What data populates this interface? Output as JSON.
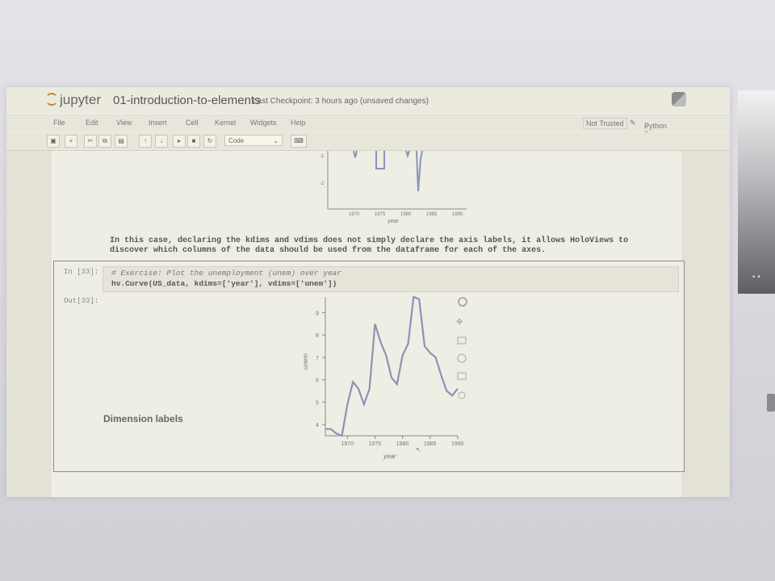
{
  "app": {
    "logo_text": "jupyter",
    "notebook_name": "01-introduction-to-elements",
    "checkpoint": "Last Checkpoint: 3 hours ago (unsaved changes)"
  },
  "menu": [
    "File",
    "Edit",
    "View",
    "Insert",
    "Cell",
    "Kernel",
    "Widgets",
    "Help"
  ],
  "status": {
    "trusted": "Not Trusted",
    "kernel": "Python 3"
  },
  "toolbar": {
    "cell_type": "Code"
  },
  "cells": {
    "markdown_line1": "In this case, declaring the  kdims  and  vdims  does not simply declare the axis labels, it allows HoloViews to",
    "markdown_line2": "discover which columns of the data should be used from the dataframe for each of the axes.",
    "in_prompt": "In [33]:",
    "code_line1": "# Exercise: Plot the unemployment (unem) over year",
    "code_line2": "hv.Curve(US_data, kdims=['year'], vdims=['unem'])",
    "out_prompt": "Out[33]:"
  },
  "section_heading": "Dimension labels",
  "chart_data": [
    {
      "type": "line",
      "xlabel": "year",
      "ylabel": "",
      "x_ticks": [
        1970,
        1975,
        1980,
        1985,
        1990
      ],
      "y_ticks": [
        -1,
        -2
      ],
      "note": "partially visible plot from previous output"
    },
    {
      "type": "line",
      "xlabel": "year",
      "ylabel": "unem",
      "xlim": [
        1966,
        1990
      ],
      "ylim": [
        3.5,
        9.7
      ],
      "x_ticks": [
        1970,
        1975,
        1980,
        1985,
        1990
      ],
      "y_ticks": [
        4,
        5,
        6,
        7,
        8,
        9
      ],
      "x": [
        1966,
        1967,
        1968,
        1969,
        1970,
        1971,
        1972,
        1973,
        1974,
        1975,
        1976,
        1977,
        1978,
        1979,
        1980,
        1981,
        1982,
        1983,
        1984,
        1985,
        1986,
        1987,
        1988,
        1989,
        1990
      ],
      "y": [
        3.8,
        3.8,
        3.6,
        3.5,
        4.9,
        5.9,
        5.6,
        4.9,
        5.6,
        8.5,
        7.7,
        7.1,
        6.1,
        5.8,
        7.1,
        7.6,
        9.7,
        9.6,
        7.5,
        7.2,
        7.0,
        6.2,
        5.5,
        5.3,
        5.6
      ],
      "tool_icons": [
        "pan-icon",
        "box-zoom-icon",
        "wheel-zoom-icon",
        "save-icon",
        "reset-icon",
        "help-icon"
      ]
    }
  ]
}
